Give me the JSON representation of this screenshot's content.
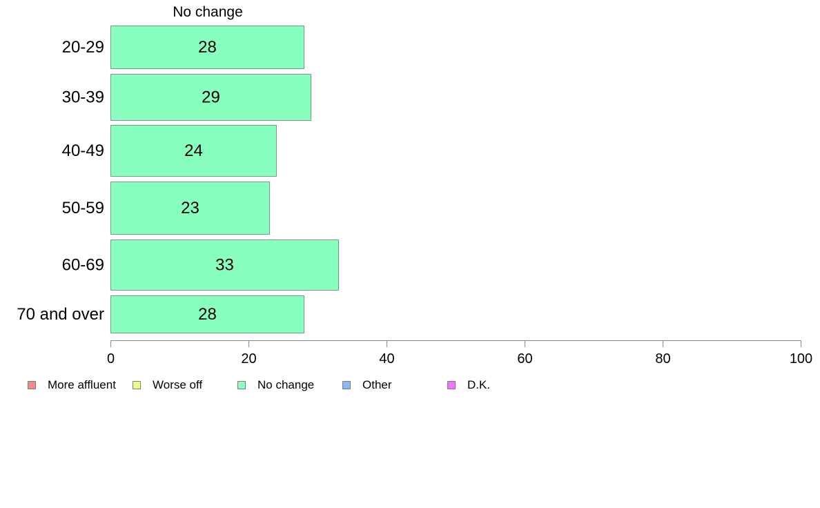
{
  "chart_data": {
    "type": "bar",
    "orientation": "horizontal",
    "panel_title": "No change",
    "categories": [
      "20-29",
      "30-39",
      "40-49",
      "50-59",
      "60-69",
      "70 and over"
    ],
    "series": [
      {
        "name": "No change",
        "values": [
          28,
          29,
          24,
          23,
          33,
          28
        ],
        "color": "#88ffbf"
      }
    ],
    "xlim": [
      0,
      100
    ],
    "xticks": [
      "0",
      "20",
      "40",
      "60",
      "80",
      "100"
    ],
    "grid": false,
    "legend_position": "bottom-left",
    "legend": [
      {
        "label": "More affluent",
        "color": "#f88888"
      },
      {
        "label": "Worse off",
        "color": "#eeff88"
      },
      {
        "label": "No change",
        "color": "#88ffbf"
      },
      {
        "label": "Other",
        "color": "#88b8f8"
      },
      {
        "label": "D.K.",
        "color": "#ee77ff"
      }
    ]
  }
}
